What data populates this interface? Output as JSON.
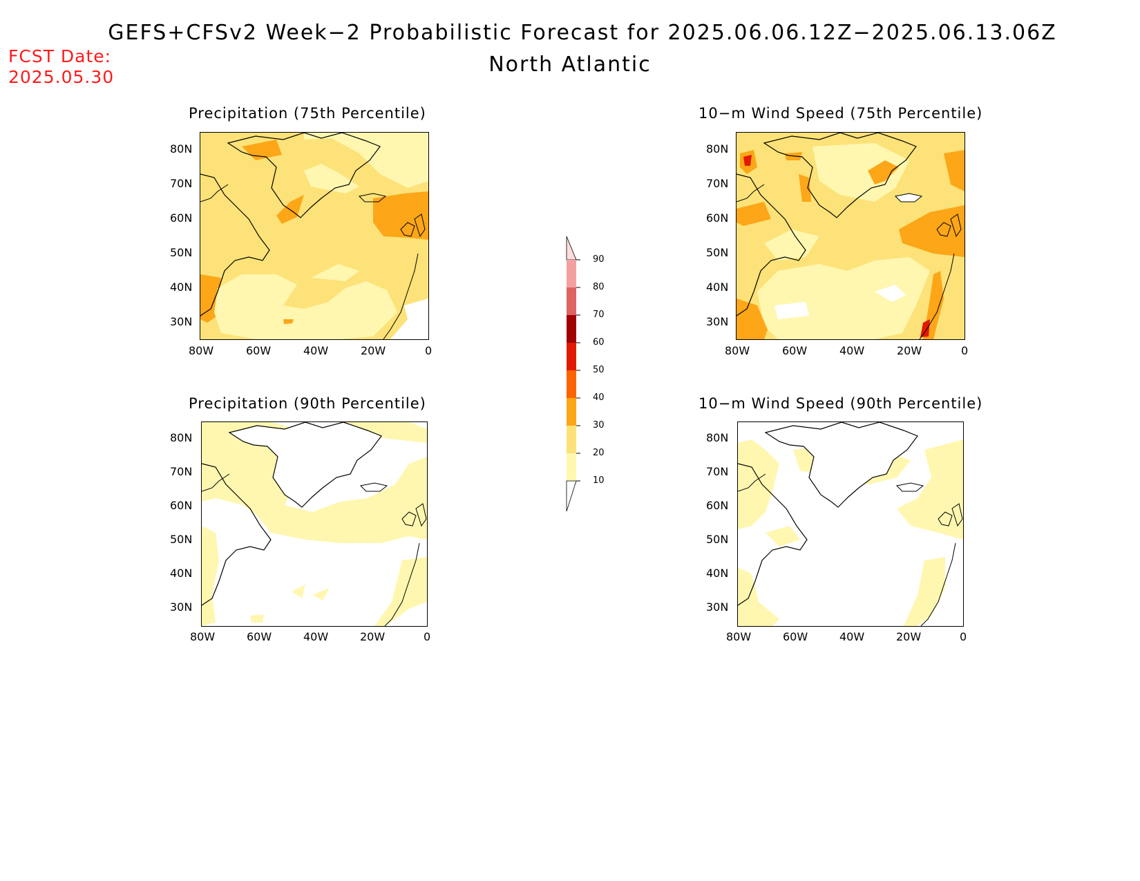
{
  "header": {
    "title": "GEFS+CFSv2 Week−2 Probabilistic Forecast for 2025.06.06.12Z−2025.06.13.06Z",
    "subtitle": "North Atlantic"
  },
  "fcst": {
    "line1": "FCST Date:",
    "line2": "2025.05.30"
  },
  "colors": {
    "fcst_text": "#ff1a1a",
    "levels": [
      "#ffffff",
      "#fff7b0",
      "#fce278",
      "#fca618",
      "#fb6400",
      "#e01a00",
      "#a00000",
      "#dc6464",
      "#f4a0a0",
      "#fcdcdc"
    ]
  },
  "colorbar": {
    "levels": [
      "10",
      "20",
      "30",
      "40",
      "50",
      "60",
      "70",
      "80",
      "90"
    ]
  },
  "panels": [
    {
      "title": "Precipitation (75th Percentile)"
    },
    {
      "title": "10−m Wind Speed (75th Percentile)"
    },
    {
      "title": "Precipitation (90th Percentile)"
    },
    {
      "title": "10−m Wind Speed (90th Percentile)"
    }
  ],
  "axes": {
    "lat_labels": [
      "80N",
      "70N",
      "60N",
      "50N",
      "40N",
      "30N"
    ],
    "lon_labels": [
      "80W",
      "60W",
      "40W",
      "20W",
      "0"
    ]
  }
}
